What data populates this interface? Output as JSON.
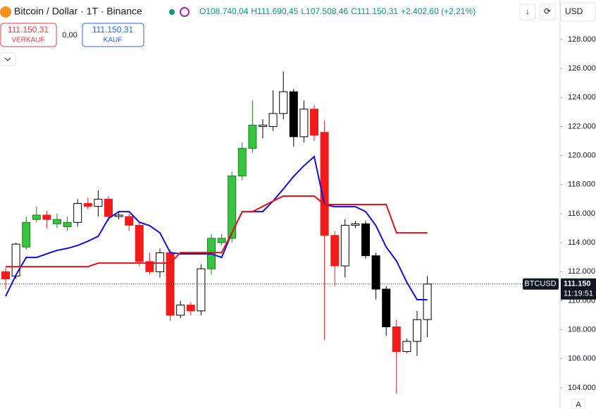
{
  "chart_data": {
    "type": "candlestick",
    "title": "Bitcoin / Dollar · 1T · Binance",
    "ohlc": [
      "O108.740,04",
      "H111.690,45",
      "L107.508,46",
      "C111.150,31"
    ],
    "change": "+2.402,60 (+2,21%)",
    "currency": "USD",
    "sell": {
      "price": "111.150,31",
      "label": "VERKAUF"
    },
    "spread": "0,00",
    "buy": {
      "price": "111.150,31",
      "label": "KAUF"
    },
    "symbol": "BTCUSD",
    "last_price": {
      "value": 111150,
      "label": "111.150"
    },
    "countdown": "11:19:51",
    "axis_mark": "A",
    "ylim": [
      102540,
      130720
    ],
    "yticks": [
      {
        "value": 104000,
        "label": "104.000"
      },
      {
        "value": 106000,
        "label": "106.000"
      },
      {
        "value": 108000,
        "label": "108.000"
      },
      {
        "value": 110000,
        "label": "110.000"
      },
      {
        "value": 112000,
        "label": "112.000"
      },
      {
        "value": 114000,
        "label": "114.000"
      },
      {
        "value": 116000,
        "label": "116.000"
      },
      {
        "value": 118000,
        "label": "118.000"
      },
      {
        "value": 120000,
        "label": "120.000"
      },
      {
        "value": 122000,
        "label": "122.000"
      },
      {
        "value": 124000,
        "label": "124.000"
      },
      {
        "value": 126000,
        "label": "126.000"
      },
      {
        "value": 128000,
        "label": "128.000"
      }
    ],
    "grid": false,
    "candles": {
      "open": [
        112000,
        111700,
        113700,
        115600,
        115900,
        115300,
        115100,
        115400,
        116700,
        116500,
        117000,
        115800,
        115800,
        115200,
        112700,
        112000,
        113300,
        109000,
        109700,
        109300,
        112200,
        114000,
        114300,
        118600,
        120500,
        122100,
        122000,
        122900,
        124400,
        121300,
        123200,
        121600,
        114500,
        112400,
        115200,
        115300,
        113100,
        110800,
        108200,
        106500,
        107200,
        108700
      ],
      "high": [
        112300,
        114000,
        115800,
        116500,
        116200,
        116000,
        115800,
        117000,
        117100,
        117600,
        117200,
        116100,
        116000,
        115400,
        113300,
        113600,
        113500,
        110000,
        109900,
        112500,
        114600,
        114600,
        118900,
        120900,
        123800,
        122500,
        124500,
        125800,
        124600,
        123800,
        123500,
        122400,
        114800,
        115600,
        115500,
        115500,
        113300,
        111000,
        108700,
        107400,
        109300,
        111700
      ],
      "low": [
        110800,
        111500,
        113500,
        115400,
        115000,
        115000,
        114800,
        115100,
        116300,
        115800,
        115500,
        115600,
        114800,
        112400,
        111800,
        111600,
        108600,
        108800,
        109000,
        109000,
        111800,
        113800,
        114000,
        118300,
        120200,
        121200,
        121700,
        122500,
        120600,
        120900,
        121000,
        107300,
        111000,
        111600,
        115000,
        112900,
        110100,
        107600,
        103600,
        106400,
        106200,
        107500
      ],
      "close": [
        111500,
        113900,
        115400,
        115900,
        115600,
        115600,
        115400,
        116700,
        116500,
        117000,
        115800,
        115900,
        115200,
        112700,
        112000,
        113300,
        109000,
        109700,
        109300,
        112200,
        114300,
        114300,
        118600,
        120500,
        122100,
        122000,
        122900,
        124400,
        121300,
        123200,
        121400,
        114500,
        112400,
        115200,
        115300,
        113100,
        110800,
        108200,
        106500,
        107200,
        108700,
        111150
      ],
      "colors": [
        "#f21b1b",
        "#ffffff",
        "#39c43f",
        "#39c43f",
        "#f21b1b",
        "#39c43f",
        "#39c43f",
        "#ffffff",
        "#f21b1b",
        "#ffffff",
        "#f21b1b",
        "#ffffff",
        "#f21b1b",
        "#f21b1b",
        "#f21b1b",
        "#ffffff",
        "#f21b1b",
        "#ffffff",
        "#f21b1b",
        "#ffffff",
        "#39c43f",
        "#39c43f",
        "#39c43f",
        "#39c43f",
        "#39c43f",
        "#ffffff",
        "#ffffff",
        "#ffffff",
        "#000000",
        "#ffffff",
        "#f21b1b",
        "#f21b1b",
        "#f21b1b",
        "#ffffff",
        "#ffffff",
        "#000000",
        "#000000",
        "#000000",
        "#f21b1b",
        "#ffffff",
        "#ffffff",
        "#ffffff"
      ]
    },
    "lines": [
      {
        "color": "#1010d8",
        "values": [
          110310,
          111770,
          112980,
          112980,
          113230,
          113470,
          113610,
          113810,
          114100,
          114440,
          115660,
          116140,
          116140,
          115410,
          115170,
          114680,
          113320,
          113230,
          113230,
          113230,
          113230,
          112980,
          114680,
          116140,
          116140,
          116140,
          116870,
          117700,
          118570,
          119300,
          119930,
          116630,
          116480,
          116480,
          116480,
          116140,
          115170,
          113700,
          112740,
          111280,
          110070,
          110070
        ]
      },
      {
        "color": "#e8121b",
        "values": [
          112350,
          112350,
          112350,
          112350,
          112350,
          112350,
          112350,
          112350,
          112350,
          112590,
          112590,
          112590,
          112590,
          112590,
          112590,
          112590,
          112590,
          113320,
          113320,
          113320,
          113320,
          113320,
          114680,
          116140,
          116140,
          116500,
          116870,
          117210,
          117210,
          117210,
          117210,
          116630,
          116630,
          116630,
          116630,
          116630,
          116630,
          116630,
          114680,
          114680,
          114680,
          114680
        ]
      }
    ]
  }
}
